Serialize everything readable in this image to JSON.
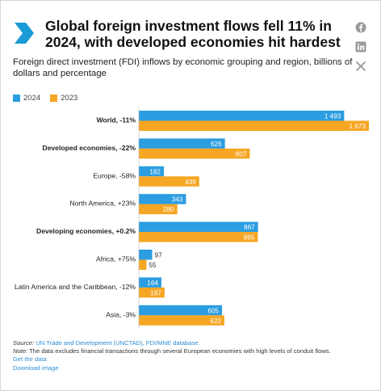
{
  "title": "Global foreign investment flows fell 11% in 2024, with developed economies hit hardest",
  "subtitle": "Foreign direct investment (FDI) inflows by economic grouping and region, billions of dollars and percentage",
  "share_icons": [
    "facebook-icon",
    "linkedin-icon",
    "x-icon"
  ],
  "colors": {
    "series_2024": "#2b9de0",
    "series_2023": "#f5a623",
    "brand": "#1a9ad6"
  },
  "chart_data": {
    "type": "bar",
    "orientation": "horizontal",
    "categories": [
      "World, -11%",
      "Developed economies, -22%",
      "Europe, -58%",
      "North America, +23%",
      "Developing economies, +0.2%",
      "Africa, +75%",
      "Latin America and the Caribbean, -12%",
      "Asia, -3%"
    ],
    "bold_categories": [
      true,
      true,
      false,
      false,
      true,
      false,
      false,
      false
    ],
    "series": [
      {
        "name": "2024",
        "values": [
          1493,
          626,
          182,
          343,
          867,
          97,
          164,
          605
        ],
        "labels": [
          "1 493",
          "626",
          "182",
          "343",
          "867",
          "97",
          "164",
          "605"
        ]
      },
      {
        "name": "2023",
        "values": [
          1673,
          807,
          439,
          280,
          865,
          55,
          187,
          622
        ],
        "labels": [
          "1 673",
          "807",
          "439",
          "280",
          "865",
          "55",
          "187",
          "622"
        ]
      }
    ],
    "xlim": [
      0,
      1673
    ],
    "legend_position": "top-left",
    "grid": false
  },
  "footer": {
    "source_label": "Source:",
    "source_text": "UN Trade and Development (UNCTAD), FDI/MNE database.",
    "note_label": "Note:",
    "note_text": "The data excludes financial transactions through several European economies with high levels of conduit flows.",
    "get_data": "Get the data",
    "download_image": "Download image"
  }
}
